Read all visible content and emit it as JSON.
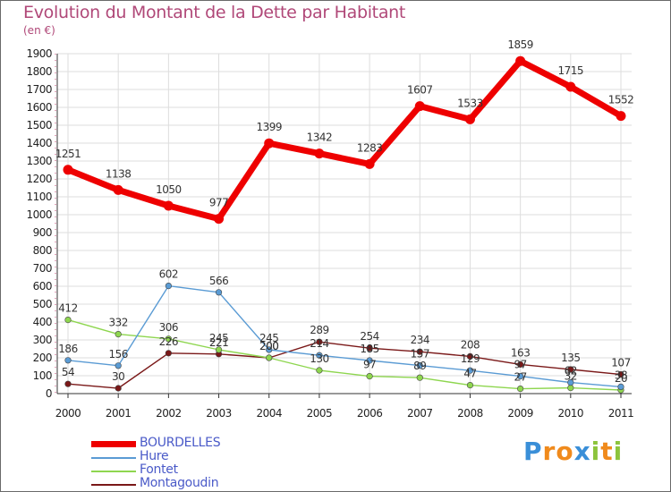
{
  "title": "Evolution du Montant de la Dette par Habitant",
  "subtitle": "(en €)",
  "chart_data": {
    "type": "line",
    "title": "Evolution du Montant de la Dette par Habitant",
    "subtitle": "(en €)",
    "x": [
      "2000",
      "2001",
      "2002",
      "2003",
      "2004",
      "2005",
      "2006",
      "2007",
      "2008",
      "2009",
      "2010",
      "2011"
    ],
    "ylim": [
      0,
      1900
    ],
    "yticks": [
      "0",
      "100",
      "200",
      "300",
      "400",
      "500",
      "600",
      "700",
      "800",
      "900",
      "1000",
      "1100",
      "1200",
      "1300",
      "1400",
      "1500",
      "1600",
      "1700",
      "1800",
      "1900"
    ],
    "grid": true,
    "legend_position": "bottom-left",
    "series": [
      {
        "name": "BOURDELLES",
        "color": "#ee0000",
        "values": [
          1251,
          1138,
          1050,
          977,
          1399,
          1342,
          1283,
          1607,
          1533,
          1859,
          1715,
          1552
        ]
      },
      {
        "name": "Hure",
        "color": "#5a9bd4",
        "values": [
          186,
          156,
          602,
          566,
          245,
          214,
          185,
          157,
          129,
          97,
          62,
          38
        ]
      },
      {
        "name": "Fontet",
        "color": "#8ed64f",
        "values": [
          412,
          332,
          306,
          245,
          200,
          130,
          97,
          89,
          47,
          27,
          32,
          20
        ]
      },
      {
        "name": "Montagoudin",
        "color": "#7a1818",
        "values": [
          54,
          30,
          226,
          221,
          200,
          289,
          254,
          234,
          208,
          163,
          135,
          107
        ]
      }
    ]
  },
  "legend": [
    {
      "label": "BOURDELLES",
      "color": "#ee0000"
    },
    {
      "label": "Hure",
      "color": "#5a9bd4"
    },
    {
      "label": "Fontet",
      "color": "#8ed64f"
    },
    {
      "label": "Montagoudin",
      "color": "#7a1818"
    }
  ],
  "logo": {
    "text": "Proxiti",
    "letters": [
      "P",
      "r",
      "o",
      "x",
      "i",
      "t",
      "i"
    ],
    "colors": [
      "#3a8fd8",
      "#f08a1c",
      "#f08a1c",
      "#3a8fd8",
      "#8cc43c",
      "#f08a1c",
      "#8cc43c"
    ]
  }
}
